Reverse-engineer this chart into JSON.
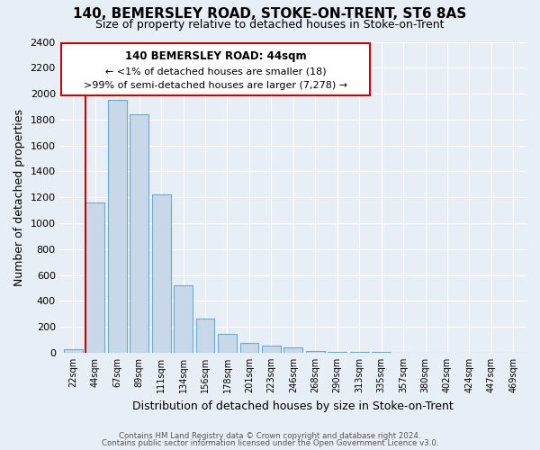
{
  "title": "140, BEMERSLEY ROAD, STOKE-ON-TRENT, ST6 8AS",
  "subtitle": "Size of property relative to detached houses in Stoke-on-Trent",
  "xlabel": "Distribution of detached houses by size in Stoke-on-Trent",
  "ylabel": "Number of detached properties",
  "bar_labels": [
    "22sqm",
    "44sqm",
    "67sqm",
    "89sqm",
    "111sqm",
    "134sqm",
    "156sqm",
    "178sqm",
    "201sqm",
    "223sqm",
    "246sqm",
    "268sqm",
    "290sqm",
    "313sqm",
    "335sqm",
    "357sqm",
    "380sqm",
    "402sqm",
    "424sqm",
    "447sqm",
    "469sqm"
  ],
  "bar_values": [
    25,
    1160,
    1950,
    1840,
    1220,
    520,
    265,
    148,
    78,
    52,
    38,
    12,
    8,
    5,
    3,
    2,
    1,
    1,
    0,
    0,
    0
  ],
  "bar_color": "#c8d8e8",
  "bar_edge_color": "#6aabce",
  "highlight_index": 1,
  "highlight_edge_color": "#cc0000",
  "ylim": [
    0,
    2400
  ],
  "yticks": [
    0,
    200,
    400,
    600,
    800,
    1000,
    1200,
    1400,
    1600,
    1800,
    2000,
    2200,
    2400
  ],
  "annotation_title": "140 BEMERSLEY ROAD: 44sqm",
  "annotation_line1": "← <1% of detached houses are smaller (18)",
  "annotation_line2": ">99% of semi-detached houses are larger (7,278) →",
  "annotation_box_color": "#ffffff",
  "annotation_box_edge_color": "#cc0000",
  "footer_line1": "Contains HM Land Registry data © Crown copyright and database right 2024.",
  "footer_line2": "Contains public sector information licensed under the Open Government Licence v3.0.",
  "bg_color": "#e8eef5",
  "plot_bg_color": "#e8eef5",
  "grid_color": "#ffffff",
  "title_fontsize": 11,
  "subtitle_fontsize": 9
}
